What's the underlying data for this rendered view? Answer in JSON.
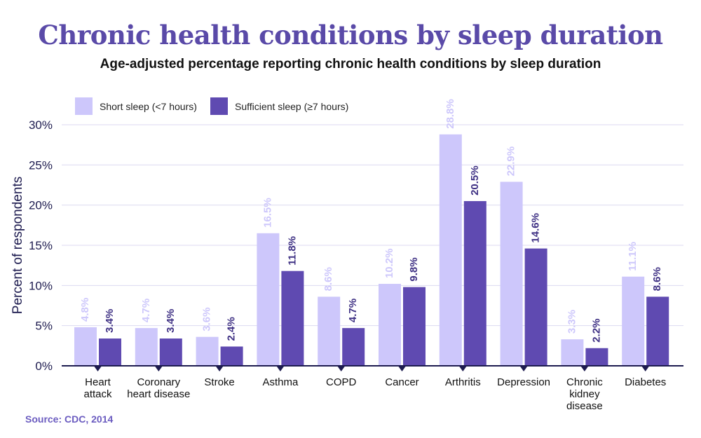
{
  "title": "Chronic health conditions by sleep duration",
  "subtitle": "Age-adjusted percentage reporting chronic health conditions by sleep duration",
  "source": "Source: CDC, 2014",
  "colors": {
    "short": "#cdc7fb",
    "sufficient": "#5f4ab1",
    "short_label": "#cdc7fb",
    "sufficient_label": "#3f3184",
    "axis": "#1d1b4f",
    "grid": "#dcdaf0",
    "title": "#5a4aa8",
    "source": "#6b5cc0"
  },
  "chart_data": {
    "type": "bar",
    "title": "Chronic health conditions by sleep duration",
    "subtitle": "Age-adjusted percentage reporting chronic health conditions by sleep duration",
    "xlabel": "",
    "ylabel": "Percent of respondents",
    "ylim": [
      0,
      30
    ],
    "yticks": [
      0,
      5,
      10,
      15,
      20,
      25,
      30
    ],
    "ytick_labels": [
      "0%",
      "5%",
      "10%",
      "15%",
      "20%",
      "25%",
      "30%"
    ],
    "grid": true,
    "legend_position": "top-left",
    "categories": [
      [
        "Heart",
        "attack"
      ],
      [
        "Coronary",
        "heart disease"
      ],
      [
        "Stroke"
      ],
      [
        "Asthma"
      ],
      [
        "COPD"
      ],
      [
        "Cancer"
      ],
      [
        "Arthritis"
      ],
      [
        "Depression"
      ],
      [
        "Chronic",
        "kidney",
        "disease"
      ],
      [
        "Diabetes"
      ]
    ],
    "series": [
      {
        "name": "Short sleep (<7 hours)",
        "values": [
          4.8,
          4.7,
          3.6,
          16.5,
          8.6,
          10.2,
          28.8,
          22.9,
          3.3,
          11.1
        ],
        "labels": [
          "4.8%",
          "4.7%",
          "3.6%",
          "16.5%",
          "8.6%",
          "10.2%",
          "28.8%",
          "22.9%",
          "3.3%",
          "11.1%"
        ]
      },
      {
        "name": "Sufficient sleep (≥7 hours)",
        "values": [
          3.4,
          3.4,
          2.4,
          11.8,
          4.7,
          9.8,
          20.5,
          14.6,
          2.2,
          8.6
        ],
        "labels": [
          "3.4%",
          "3.4%",
          "2.4%",
          "11.8%",
          "4.7%",
          "9.8%",
          "20.5%",
          "14.6%",
          "2.2%",
          "8.6%"
        ]
      }
    ]
  }
}
